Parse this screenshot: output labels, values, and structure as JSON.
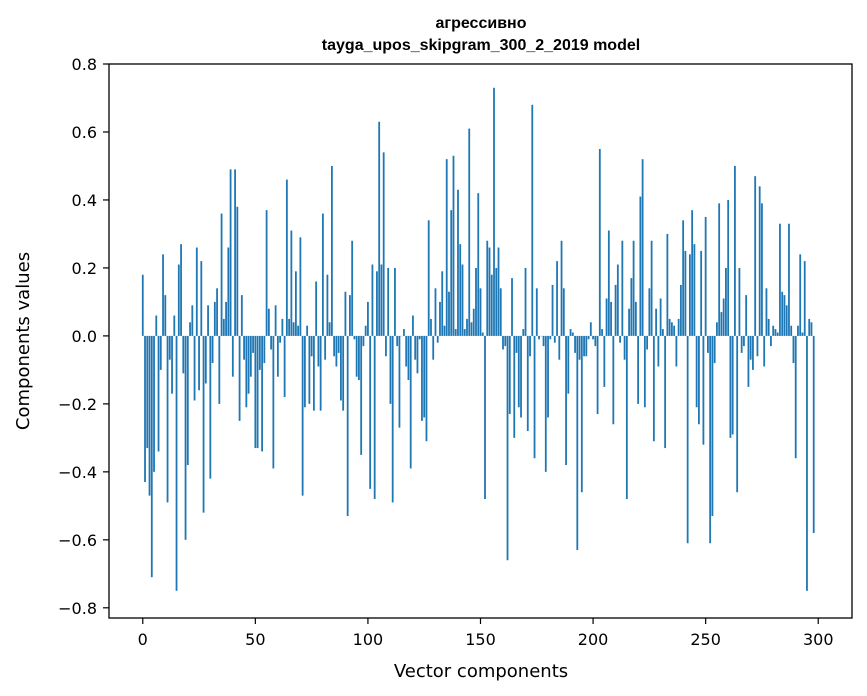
{
  "chart_data": {
    "type": "bar",
    "title_line1": "агрессивно",
    "title_line2": "tayga_upos_skipgram_300_2_2019 model",
    "xlabel": "Vector components",
    "ylabel": "Components values",
    "xlim": [
      -15,
      315
    ],
    "ylim": [
      -0.83,
      0.8
    ],
    "xticks": [
      0,
      50,
      100,
      150,
      200,
      250,
      300
    ],
    "xtick_labels": [
      "0",
      "50",
      "100",
      "150",
      "200",
      "250",
      "300"
    ],
    "yticks": [
      -0.8,
      -0.6,
      -0.4,
      -0.2,
      0.0,
      0.2,
      0.4,
      0.6,
      0.8
    ],
    "ytick_labels": [
      "−0.8",
      "−0.6",
      "−0.4",
      "−0.2",
      "0.0",
      "0.2",
      "0.4",
      "0.6",
      "0.8"
    ],
    "grid": false,
    "bar_color": "#1f77b4",
    "values": [
      0.18,
      -0.43,
      -0.33,
      -0.47,
      -0.71,
      -0.4,
      0.06,
      -0.34,
      -0.1,
      0.24,
      0.12,
      -0.49,
      -0.07,
      -0.17,
      0.06,
      -0.75,
      0.21,
      0.27,
      -0.11,
      -0.6,
      -0.38,
      0.04,
      0.09,
      -0.19,
      0.26,
      -0.16,
      0.22,
      -0.52,
      -0.14,
      0.09,
      -0.42,
      -0.08,
      0.1,
      0.14,
      -0.2,
      0.36,
      0.05,
      0.1,
      0.26,
      0.49,
      -0.12,
      0.49,
      0.38,
      -0.25,
      0.12,
      -0.07,
      -0.21,
      -0.17,
      -0.12,
      -0.05,
      -0.33,
      -0.33,
      -0.1,
      -0.34,
      -0.08,
      0.37,
      0.08,
      -0.04,
      -0.39,
      0.09,
      -0.12,
      -0.02,
      0.05,
      -0.18,
      0.46,
      0.05,
      0.31,
      0.04,
      0.19,
      0.03,
      0.29,
      -0.47,
      -0.21,
      0.03,
      -0.2,
      -0.06,
      -0.22,
      0.16,
      -0.09,
      -0.22,
      0.36,
      -0.07,
      0.18,
      0.04,
      0.5,
      -0.06,
      -0.09,
      -0.05,
      -0.19,
      -0.22,
      0.13,
      -0.53,
      0.12,
      0.28,
      -0.01,
      -0.12,
      -0.13,
      -0.35,
      -0.03,
      0.03,
      0.1,
      -0.45,
      0.21,
      -0.48,
      0.19,
      0.63,
      0.21,
      0.54,
      -0.06,
      0.2,
      -0.2,
      -0.49,
      0.2,
      -0.03,
      -0.27,
      0.0,
      0.02,
      -0.09,
      -0.13,
      -0.39,
      0.06,
      -0.07,
      -0.11,
      -0.01,
      -0.25,
      -0.24,
      -0.31,
      0.34,
      0.05,
      -0.07,
      0.14,
      -0.02,
      0.1,
      0.19,
      0.03,
      0.52,
      0.13,
      0.37,
      0.53,
      0.02,
      0.43,
      0.27,
      0.21,
      0.02,
      0.05,
      0.61,
      0.04,
      0.08,
      0.2,
      0.42,
      0.14,
      0.01,
      -0.48,
      0.28,
      0.26,
      0.18,
      0.73,
      0.2,
      0.26,
      0.14,
      -0.04,
      -0.03,
      -0.66,
      -0.23,
      0.17,
      -0.3,
      -0.05,
      -0.21,
      -0.24,
      0.02,
      0.2,
      -0.28,
      -0.06,
      0.68,
      -0.36,
      0.14,
      -0.01,
      0.0,
      -0.03,
      -0.4,
      -0.24,
      -0.01,
      0.15,
      -0.02,
      0.22,
      -0.07,
      0.28,
      0.14,
      -0.38,
      -0.17,
      0.02,
      0.01,
      -0.05,
      -0.63,
      -0.07,
      -0.46,
      -0.06,
      -0.06,
      -0.01,
      0.04,
      -0.01,
      -0.03,
      -0.23,
      0.55,
      0.02,
      -0.15,
      0.11,
      0.31,
      0.1,
      -0.26,
      0.15,
      0.21,
      -0.02,
      0.28,
      -0.07,
      -0.48,
      0.08,
      0.17,
      0.28,
      0.1,
      -0.2,
      0.41,
      0.52,
      -0.21,
      -0.04,
      0.14,
      0.28,
      -0.31,
      0.08,
      -0.09,
      0.11,
      0.02,
      -0.33,
      0.3,
      0.05,
      0.04,
      0.03,
      -0.09,
      0.05,
      0.15,
      0.34,
      0.25,
      -0.61,
      0.24,
      0.37,
      0.27,
      -0.21,
      -0.26,
      0.25,
      -0.32,
      0.35,
      -0.05,
      -0.61,
      -0.53,
      -0.08,
      0.04,
      0.39,
      0.07,
      0.11,
      0.2,
      0.4,
      -0.3,
      -0.29,
      0.5,
      -0.46,
      0.2,
      -0.05,
      -0.03,
      0.12,
      -0.15,
      -0.07,
      -0.1,
      0.47,
      -0.06,
      0.44,
      0.39,
      -0.09,
      0.14,
      0.05,
      -0.03,
      0.03,
      0.02,
      0.01,
      0.33,
      0.13,
      0.12,
      0.09,
      0.33,
      0.03,
      -0.08,
      -0.36,
      0.03,
      0.24,
      0.01,
      0.22,
      -0.75,
      0.05,
      0.04,
      -0.58
    ]
  }
}
